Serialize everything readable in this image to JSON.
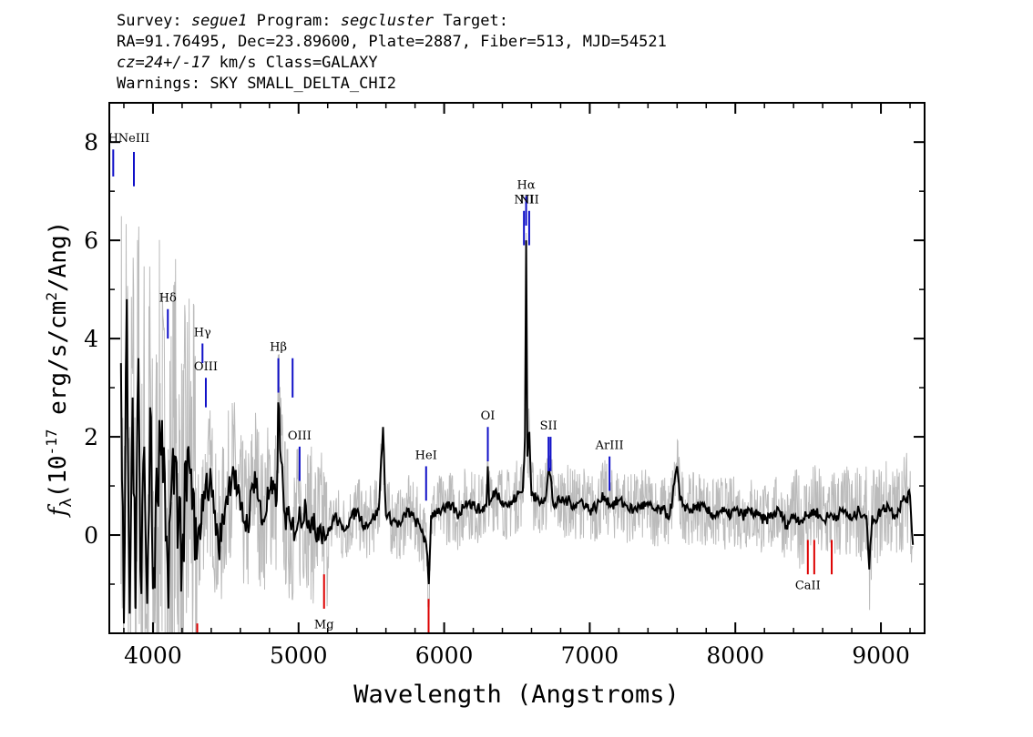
{
  "header": {
    "survey_label": "Survey:",
    "survey": "segue1",
    "program_label": "Program:",
    "program": "segcluster",
    "target_label": "Target:",
    "line2": "RA=91.76495, Dec=23.89600, Plate=2887, Fiber=513, MJD=54521",
    "cz": "cz=24+/-17",
    "cz_rest": " km/s Class=GALAXY",
    "warnings": "Warnings: SKY SMALL_DELTA_CHI2"
  },
  "chart_data": {
    "type": "line",
    "xlabel": "Wavelength (Angstroms)",
    "ylabel_main": "(10",
    "ylabel_exp": "-17",
    "ylabel_mid": " erg/s/cm",
    "ylabel_exp2": "2",
    "ylabel_end": "/Ang)",
    "ylabel_symbol": "f",
    "ylabel_sub": "λ",
    "xlim": [
      3700,
      9300
    ],
    "ylim": [
      -2.0,
      8.8
    ],
    "x_ticks": [
      4000,
      5000,
      6000,
      7000,
      8000,
      9000
    ],
    "x_tick_labels": [
      "4000",
      "5000",
      "6000",
      "7000",
      "8000",
      "9000"
    ],
    "y_ticks": [
      0,
      2,
      4,
      6,
      8
    ],
    "y_tick_labels": [
      "0",
      "2",
      "4",
      "6",
      "8"
    ],
    "series": [
      {
        "role": "flux",
        "color": "#000000",
        "x": [
          3780,
          3800,
          3820,
          3840,
          3860,
          3880,
          3900,
          3920,
          3940,
          3960,
          3980,
          4000,
          4050,
          4100,
          4150,
          4200,
          4250,
          4300,
          4350,
          4400,
          4450,
          4500,
          4550,
          4600,
          4650,
          4700,
          4750,
          4800,
          4850,
          4860,
          4880,
          4900,
          4950,
          5000,
          5050,
          5100,
          5150,
          5200,
          5250,
          5300,
          5350,
          5400,
          5450,
          5500,
          5550,
          5580,
          5600,
          5650,
          5700,
          5750,
          5800,
          5850,
          5880,
          5895,
          5910,
          5950,
          6000,
          6050,
          6100,
          6150,
          6200,
          6250,
          6290,
          6300,
          6310,
          6350,
          6400,
          6450,
          6500,
          6540,
          6555,
          6563,
          6572,
          6585,
          6600,
          6650,
          6700,
          6716,
          6731,
          6750,
          6800,
          6850,
          6900,
          6950,
          7000,
          7050,
          7100,
          7150,
          7200,
          7250,
          7300,
          7350,
          7400,
          7450,
          7500,
          7550,
          7600,
          7620,
          7650,
          7700,
          7750,
          7800,
          7850,
          7900,
          7950,
          8000,
          8050,
          8100,
          8150,
          8200,
          8250,
          8300,
          8350,
          8400,
          8450,
          8500,
          8550,
          8600,
          8650,
          8700,
          8750,
          8800,
          8850,
          8900,
          8920,
          8940,
          8960,
          9000,
          9050,
          9100,
          9150,
          9200,
          9220
        ],
        "values": [
          3.5,
          -1.8,
          4.8,
          -1.6,
          2.8,
          -1.5,
          3.6,
          -1.2,
          1.8,
          -1.4,
          2.6,
          -1.1,
          1.9,
          -0.6,
          1.6,
          -0.4,
          1.4,
          -0.5,
          0.9,
          1.1,
          -0.3,
          0.7,
          1.4,
          0.5,
          0.2,
          1.3,
          0.2,
          0.9,
          0.7,
          2.7,
          1.5,
          0.5,
          0.1,
          0.3,
          0.6,
          0.1,
          0.2,
          0.0,
          0.4,
          0.1,
          0.3,
          0.5,
          0.2,
          0.3,
          0.5,
          2.2,
          0.4,
          0.3,
          0.2,
          0.5,
          0.3,
          0.1,
          -0.3,
          -1.0,
          0.4,
          0.5,
          0.5,
          0.6,
          0.4,
          0.7,
          0.6,
          0.5,
          0.6,
          1.4,
          0.6,
          0.9,
          0.7,
          0.6,
          0.8,
          0.9,
          2.0,
          6.0,
          1.6,
          2.1,
          0.8,
          0.7,
          0.8,
          1.3,
          1.2,
          0.6,
          0.7,
          0.7,
          0.6,
          0.7,
          0.5,
          0.6,
          0.8,
          0.6,
          0.7,
          0.6,
          0.5,
          0.6,
          0.6,
          0.5,
          0.5,
          0.4,
          1.4,
          0.7,
          0.6,
          0.5,
          0.6,
          0.5,
          0.4,
          0.5,
          0.4,
          0.5,
          0.4,
          0.5,
          0.4,
          0.3,
          0.4,
          0.5,
          0.2,
          0.4,
          0.3,
          0.4,
          0.5,
          0.3,
          0.4,
          0.4,
          0.5,
          0.3,
          0.5,
          0.4,
          -0.7,
          0.4,
          0.3,
          0.5,
          0.6,
          0.4,
          0.7,
          0.8,
          -0.2
        ]
      }
    ],
    "noise_band_color": "#bbbbbb",
    "emission_lines": [
      {
        "label": "H",
        "wl": 3727,
        "y0": 7.3,
        "y1": 7.85,
        "color": "#1010c8",
        "label_y": 8.0
      },
      {
        "label": "NeIII",
        "wl": 3869,
        "y0": 7.1,
        "y1": 7.8,
        "color": "#1010c8",
        "label_y": 8.0
      },
      {
        "label": "Hδ",
        "wl": 4102,
        "y0": 4.0,
        "y1": 4.6,
        "color": "#1010c8",
        "label_y": 4.75
      },
      {
        "label": "Hγ",
        "wl": 4340,
        "y0": 3.5,
        "y1": 3.9,
        "color": "#1010c8",
        "label_y": 4.05
      },
      {
        "label": "OIII",
        "wl": 4363,
        "y0": 2.6,
        "y1": 3.2,
        "color": "#1010c8",
        "label_y": 3.35
      },
      {
        "label": "Hβ",
        "wl": 4861,
        "y0": 2.9,
        "y1": 3.6,
        "color": "#1010c8",
        "label_y": 3.75
      },
      {
        "label": "",
        "wl": 4959,
        "y0": 2.8,
        "y1": 3.6,
        "color": "#1010c8",
        "label_y": 0
      },
      {
        "label": "OIII",
        "wl": 5007,
        "y0": 1.1,
        "y1": 1.8,
        "color": "#1010c8",
        "label_y": 1.95
      },
      {
        "label": "HeI",
        "wl": 5876,
        "y0": 0.7,
        "y1": 1.4,
        "color": "#1010c8",
        "label_y": 1.55
      },
      {
        "label": "OI",
        "wl": 6300,
        "y0": 1.5,
        "y1": 2.2,
        "color": "#1010c8",
        "label_y": 2.35
      },
      {
        "label": "NII",
        "wl": 6548,
        "y0": 5.9,
        "y1": 6.6,
        "color": "#1010c8",
        "label_y": 6.75
      },
      {
        "label": "Hα",
        "wl": 6563,
        "y0": 6.3,
        "y1": 6.9,
        "color": "#1010c8",
        "label_y": 7.05
      },
      {
        "label": "NII",
        "wl": 6584,
        "y0": 5.9,
        "y1": 6.6,
        "color": "#1010c8",
        "label_y": 6.75
      },
      {
        "label": "SII",
        "wl": 6717,
        "y0": 1.3,
        "y1": 2.0,
        "color": "#1010c8",
        "label_y": 2.15
      },
      {
        "label": "",
        "wl": 6731,
        "y0": 1.3,
        "y1": 2.0,
        "color": "#1010c8",
        "label_y": 0
      },
      {
        "label": "ArIII",
        "wl": 7136,
        "y0": 0.9,
        "y1": 1.6,
        "color": "#1010c8",
        "label_y": 1.75
      }
    ],
    "absorption_lines": [
      {
        "label": "",
        "wl": 4304,
        "y0": -2.0,
        "y1": -1.8,
        "color": "#dd0000",
        "label_y": 0
      },
      {
        "label": "Mg",
        "wl": 5175,
        "y0": -1.5,
        "y1": -0.8,
        "color": "#dd0000",
        "label_y": -1.9
      },
      {
        "label": "",
        "wl": 5893,
        "y0": -2.0,
        "y1": -1.3,
        "color": "#dd0000",
        "label_y": 0
      },
      {
        "label": "CaII",
        "wl": 8498,
        "y0": -0.8,
        "y1": -0.1,
        "color": "#dd0000",
        "label_y": -1.1
      },
      {
        "label": "",
        "wl": 8542,
        "y0": -0.8,
        "y1": -0.1,
        "color": "#dd0000",
        "label_y": 0
      },
      {
        "label": "",
        "wl": 8662,
        "y0": -0.8,
        "y1": -0.1,
        "color": "#dd0000",
        "label_y": 0
      }
    ]
  }
}
